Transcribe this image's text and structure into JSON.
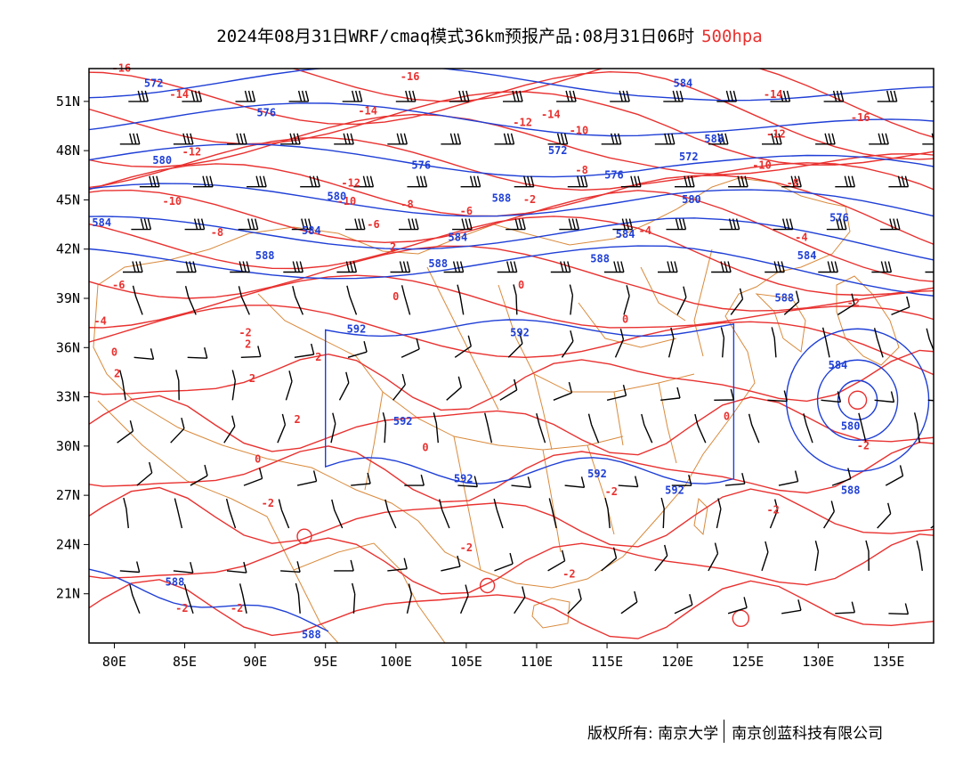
{
  "title": {
    "main": "2024年08月31日WRF/cmaq模式36km预报产品:08月31日06时",
    "level": "500hpa"
  },
  "colors": {
    "temperature": "#e8312f",
    "geopotential_height": "#1f3fd6",
    "boundaries": "#d98a3c",
    "wind_barbs": "#000000",
    "frame": "#000000"
  },
  "axes": {
    "lon_labels": [
      "80E",
      "85E",
      "90E",
      "95E",
      "100E",
      "105E",
      "110E",
      "115E",
      "120E",
      "125E",
      "130E",
      "135E"
    ],
    "lat_labels": [
      "51N",
      "48N",
      "45N",
      "42N",
      "39N",
      "36N",
      "33N",
      "30N",
      "27N",
      "24N",
      "21N"
    ]
  },
  "temperature_labels": [
    {
      "text": "-16",
      "lon": 80.5,
      "lat": 52.8
    },
    {
      "text": "-14",
      "lon": 84.6,
      "lat": 51.2
    },
    {
      "text": "-16",
      "lon": 101.0,
      "lat": 52.3
    },
    {
      "text": "-14",
      "lon": 98.0,
      "lat": 50.2
    },
    {
      "text": "-14",
      "lon": 126.8,
      "lat": 51.2
    },
    {
      "text": "-16",
      "lon": 133.0,
      "lat": 49.8
    },
    {
      "text": "-12",
      "lon": 109.0,
      "lat": 49.5
    },
    {
      "text": "-14",
      "lon": 111.0,
      "lat": 50.0
    },
    {
      "text": "-10",
      "lon": 113.0,
      "lat": 49.0
    },
    {
      "text": "-12",
      "lon": 127.0,
      "lat": 48.8
    },
    {
      "text": "-10",
      "lon": 126.0,
      "lat": 46.9
    },
    {
      "text": "-12",
      "lon": 85.5,
      "lat": 47.7
    },
    {
      "text": "-8",
      "lon": 113.2,
      "lat": 46.6
    },
    {
      "text": "-8",
      "lon": 128.2,
      "lat": 45.8
    },
    {
      "text": "-12",
      "lon": 96.8,
      "lat": 45.8
    },
    {
      "text": "-10",
      "lon": 84.1,
      "lat": 44.7
    },
    {
      "text": "-10",
      "lon": 96.5,
      "lat": 44.7
    },
    {
      "text": "-8",
      "lon": 100.8,
      "lat": 44.5
    },
    {
      "text": "-6",
      "lon": 105.0,
      "lat": 44.1
    },
    {
      "text": "-2",
      "lon": 109.5,
      "lat": 44.8
    },
    {
      "text": "-8",
      "lon": 87.3,
      "lat": 42.8
    },
    {
      "text": "-6",
      "lon": 98.4,
      "lat": 43.3
    },
    {
      "text": "-4",
      "lon": 117.7,
      "lat": 42.9
    },
    {
      "text": "-4",
      "lon": 128.8,
      "lat": 42.5
    },
    {
      "text": "2",
      "lon": 99.8,
      "lat": 41.9
    },
    {
      "text": "-6",
      "lon": 80.3,
      "lat": 39.6
    },
    {
      "text": "0",
      "lon": 108.9,
      "lat": 39.6
    },
    {
      "text": "0",
      "lon": 100.0,
      "lat": 38.9
    },
    {
      "text": "-2",
      "lon": 132.5,
      "lat": 38.5
    },
    {
      "text": "-4",
      "lon": 79.0,
      "lat": 37.4
    },
    {
      "text": "0",
      "lon": 116.3,
      "lat": 37.5
    },
    {
      "text": "-2",
      "lon": 89.3,
      "lat": 36.7
    },
    {
      "text": "2",
      "lon": 89.5,
      "lat": 36.0
    },
    {
      "text": "0",
      "lon": 80.0,
      "lat": 35.5
    },
    {
      "text": "2",
      "lon": 94.5,
      "lat": 35.2
    },
    {
      "text": "2",
      "lon": 80.2,
      "lat": 34.2
    },
    {
      "text": "2",
      "lon": 89.8,
      "lat": 33.9
    },
    {
      "text": "2",
      "lon": 93.0,
      "lat": 31.4
    },
    {
      "text": "0",
      "lon": 123.5,
      "lat": 31.6
    },
    {
      "text": "0",
      "lon": 102.1,
      "lat": 29.7
    },
    {
      "text": "-2",
      "lon": 133.2,
      "lat": 29.8
    },
    {
      "text": "0",
      "lon": 90.2,
      "lat": 29.0
    },
    {
      "text": "-2",
      "lon": 115.3,
      "lat": 27.0
    },
    {
      "text": "-2",
      "lon": 90.9,
      "lat": 26.3
    },
    {
      "text": "-2",
      "lon": 126.8,
      "lat": 25.9
    },
    {
      "text": "-2",
      "lon": 105.0,
      "lat": 23.6
    },
    {
      "text": "-2",
      "lon": 112.3,
      "lat": 22.0
    },
    {
      "text": "-2",
      "lon": 84.8,
      "lat": 19.9
    },
    {
      "text": "-2",
      "lon": 88.7,
      "lat": 19.9
    }
  ],
  "height_labels": [
    {
      "text": "572",
      "lon": 82.8,
      "lat": 51.9
    },
    {
      "text": "584",
      "lon": 120.4,
      "lat": 51.9
    },
    {
      "text": "576",
      "lon": 90.8,
      "lat": 50.1
    },
    {
      "text": "588",
      "lon": 122.6,
      "lat": 48.5
    },
    {
      "text": "572",
      "lon": 111.5,
      "lat": 47.8
    },
    {
      "text": "572",
      "lon": 120.8,
      "lat": 47.4
    },
    {
      "text": "580",
      "lon": 83.4,
      "lat": 47.2
    },
    {
      "text": "576",
      "lon": 101.8,
      "lat": 46.9
    },
    {
      "text": "576",
      "lon": 115.5,
      "lat": 46.3
    },
    {
      "text": "580",
      "lon": 95.8,
      "lat": 45.0
    },
    {
      "text": "588",
      "lon": 107.5,
      "lat": 44.9
    },
    {
      "text": "580",
      "lon": 121.0,
      "lat": 44.8
    },
    {
      "text": "576",
      "lon": 131.5,
      "lat": 43.7
    },
    {
      "text": "584",
      "lon": 79.1,
      "lat": 43.4
    },
    {
      "text": "584",
      "lon": 94.0,
      "lat": 42.9
    },
    {
      "text": "584",
      "lon": 104.4,
      "lat": 42.5
    },
    {
      "text": "584",
      "lon": 116.3,
      "lat": 42.7
    },
    {
      "text": "584",
      "lon": 129.2,
      "lat": 41.4
    },
    {
      "text": "588",
      "lon": 90.7,
      "lat": 41.4
    },
    {
      "text": "588",
      "lon": 103.0,
      "lat": 40.9
    },
    {
      "text": "588",
      "lon": 114.5,
      "lat": 41.2
    },
    {
      "text": "588",
      "lon": 127.6,
      "lat": 38.8
    },
    {
      "text": "592",
      "lon": 97.2,
      "lat": 36.9
    },
    {
      "text": "592",
      "lon": 108.8,
      "lat": 36.7
    },
    {
      "text": "584",
      "lon": 131.4,
      "lat": 34.7
    },
    {
      "text": "592",
      "lon": 100.5,
      "lat": 31.3
    },
    {
      "text": "580",
      "lon": 132.3,
      "lat": 31.0
    },
    {
      "text": "592",
      "lon": 114.3,
      "lat": 28.1
    },
    {
      "text": "592",
      "lon": 104.8,
      "lat": 27.8
    },
    {
      "text": "592",
      "lon": 119.8,
      "lat": 27.1
    },
    {
      "text": "588",
      "lon": 132.3,
      "lat": 27.1
    },
    {
      "text": "588",
      "lon": 84.3,
      "lat": 21.5
    },
    {
      "text": "588",
      "lon": 94.0,
      "lat": 18.3
    }
  ],
  "footer": {
    "copyright": "版权所有: 南京大学",
    "company": "南京创蓝科技有限公司"
  }
}
